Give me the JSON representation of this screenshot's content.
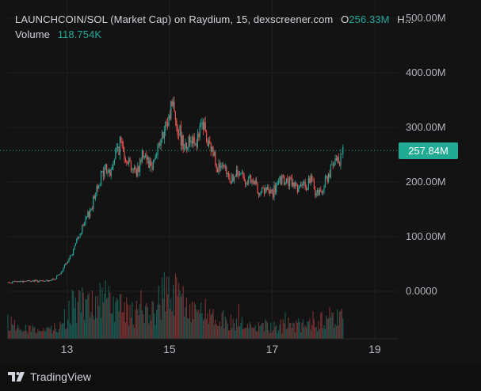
{
  "legend": {
    "symbol_line": "LAUNCHCOIN/SOL (Market Cap) on Raydium, 15, dexscreener.com",
    "open_prefix": "O",
    "open_value": "256.33M",
    "more_marker": "H...",
    "volume_label": "Volume",
    "volume_value": "118.754K"
  },
  "price_badge": "257.84M",
  "brand": {
    "name": "TradingView"
  },
  "colors": {
    "up": "#26a69a",
    "down": "#ef5350",
    "grid": "#1f1f1f",
    "axis_text": "#b2b5be",
    "price_line": "#26a69a"
  },
  "chart_data": {
    "type": "candlestick",
    "title": "LAUNCHCOIN/SOL (Market Cap) on Raydium, 15, dexscreener.com",
    "y_axis": {
      "ticks": [
        "500.00M",
        "400.00M",
        "300.00M",
        "200.00M",
        "100.00M",
        "0.0000"
      ],
      "tick_values": [
        500,
        400,
        300,
        200,
        100,
        0
      ],
      "unit": "M",
      "ylim": [
        0,
        500
      ]
    },
    "x_axis": {
      "ticks": [
        "13",
        "15",
        "17",
        "19"
      ],
      "tick_values": [
        13,
        15,
        17,
        19
      ],
      "xlim": [
        11.85,
        19.45
      ]
    },
    "last_price": 257.84,
    "price_path": [
      [
        11.85,
        16
      ],
      [
        12.05,
        18
      ],
      [
        12.3,
        19
      ],
      [
        12.55,
        18
      ],
      [
        12.75,
        22
      ],
      [
        12.9,
        35
      ],
      [
        13.0,
        55
      ],
      [
        13.1,
        68
      ],
      [
        13.2,
        95
      ],
      [
        13.35,
        125
      ],
      [
        13.5,
        160
      ],
      [
        13.6,
        198
      ],
      [
        13.75,
        225
      ],
      [
        13.85,
        215
      ],
      [
        13.95,
        255
      ],
      [
        14.05,
        270
      ],
      [
        14.2,
        240
      ],
      [
        14.35,
        215
      ],
      [
        14.5,
        260
      ],
      [
        14.65,
        228
      ],
      [
        14.75,
        260
      ],
      [
        14.85,
        278
      ],
      [
        14.95,
        300
      ],
      [
        15.05,
        350
      ],
      [
        15.15,
        305
      ],
      [
        15.25,
        275
      ],
      [
        15.35,
        270
      ],
      [
        15.45,
        285
      ],
      [
        15.55,
        275
      ],
      [
        15.65,
        310
      ],
      [
        15.75,
        265
      ],
      [
        15.85,
        255
      ],
      [
        15.95,
        228
      ],
      [
        16.05,
        220
      ],
      [
        16.2,
        205
      ],
      [
        16.35,
        215
      ],
      [
        16.5,
        205
      ],
      [
        16.65,
        195
      ],
      [
        16.8,
        182
      ],
      [
        16.9,
        185
      ],
      [
        17.0,
        178
      ],
      [
        17.15,
        200
      ],
      [
        17.3,
        200
      ],
      [
        17.45,
        195
      ],
      [
        17.6,
        188
      ],
      [
        17.75,
        205
      ],
      [
        17.85,
        180
      ],
      [
        17.95,
        182
      ],
      [
        18.05,
        205
      ],
      [
        18.15,
        222
      ],
      [
        18.3,
        240
      ],
      [
        18.4,
        258
      ]
    ],
    "volume": {
      "label": "Volume",
      "last_value": "118.754K",
      "profile": [
        [
          11.85,
          0.25
        ],
        [
          12.5,
          0.1
        ],
        [
          12.9,
          0.2
        ],
        [
          13.1,
          0.5
        ],
        [
          13.5,
          0.55
        ],
        [
          13.75,
          0.6
        ],
        [
          14.0,
          0.5
        ],
        [
          14.3,
          0.4
        ],
        [
          14.7,
          0.45
        ],
        [
          15.0,
          0.85
        ],
        [
          15.2,
          0.6
        ],
        [
          15.5,
          0.45
        ],
        [
          15.8,
          0.4
        ],
        [
          16.2,
          0.25
        ],
        [
          16.8,
          0.2
        ],
        [
          17.4,
          0.2
        ],
        [
          17.9,
          0.25
        ],
        [
          18.2,
          0.35
        ],
        [
          18.4,
          0.25
        ]
      ]
    }
  }
}
